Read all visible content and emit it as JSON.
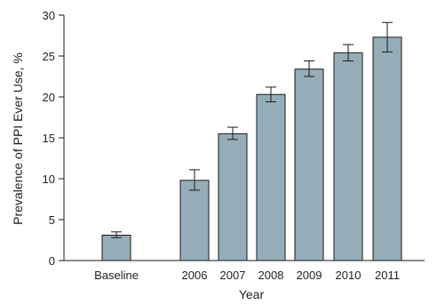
{
  "chart_data": {
    "type": "bar",
    "categories": [
      "Baseline",
      "2006",
      "2007",
      "2008",
      "2009",
      "2010",
      "2011"
    ],
    "values": [
      3.1,
      9.8,
      15.5,
      20.3,
      23.4,
      25.4,
      27.3
    ],
    "error_low": [
      2.8,
      8.6,
      14.8,
      19.4,
      22.5,
      24.4,
      25.5
    ],
    "error_high": [
      3.5,
      11.1,
      16.3,
      21.2,
      24.4,
      26.4,
      29.1
    ],
    "xlabel": "Year",
    "ylabel": "Prevalence of PPI Ever Use, %",
    "ylim": [
      0,
      30
    ],
    "yticks": [
      0,
      5,
      10,
      15,
      20,
      25,
      30
    ],
    "grid": false,
    "colors": {
      "bar_fill": "#95adb8",
      "bar_stroke": "#1a1a1a",
      "axis": "#1a1a1a",
      "error_bar": "#1a1a1a"
    }
  }
}
